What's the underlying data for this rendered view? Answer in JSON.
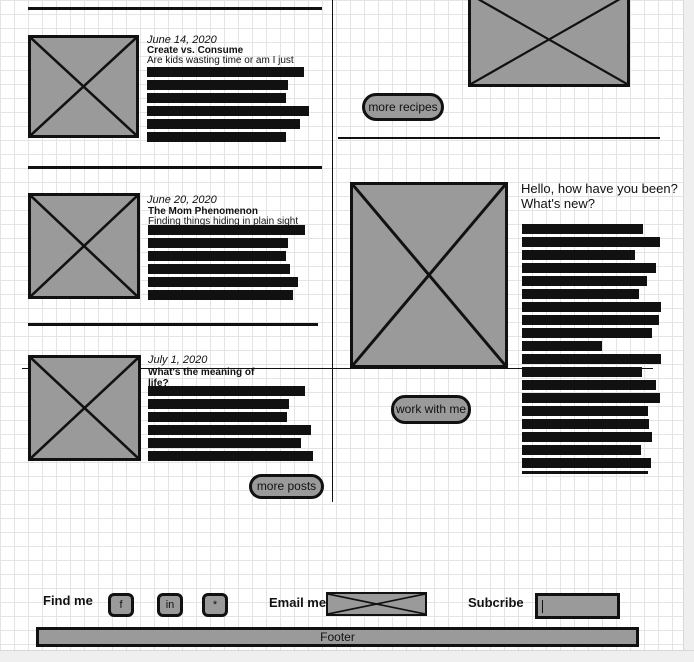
{
  "posts": [
    {
      "date": "June 14, 2020",
      "title": "Create vs. Consume",
      "excerpt": "Are kids wasting time or am I just"
    },
    {
      "date": "June 20, 2020",
      "title": "The Mom Phenomenon",
      "excerpt": "Finding things hiding in plain sight."
    },
    {
      "date": "July 1, 2020",
      "title": "What's the meaning of life?",
      "excerpt": ""
    }
  ],
  "buttons": {
    "more_posts": "more posts",
    "more_recipes": "more recipes",
    "work_with_me": "work with me"
  },
  "about": {
    "greeting": "Hello, how have you been? What's new?"
  },
  "footer_bar": {
    "find_me": "Find me",
    "social": [
      "f",
      "in",
      "*"
    ],
    "email_me": "Email me",
    "subscribe": "Subcribe",
    "footer": "Footer"
  },
  "placeholder_icon": "image-placeholder-icon"
}
